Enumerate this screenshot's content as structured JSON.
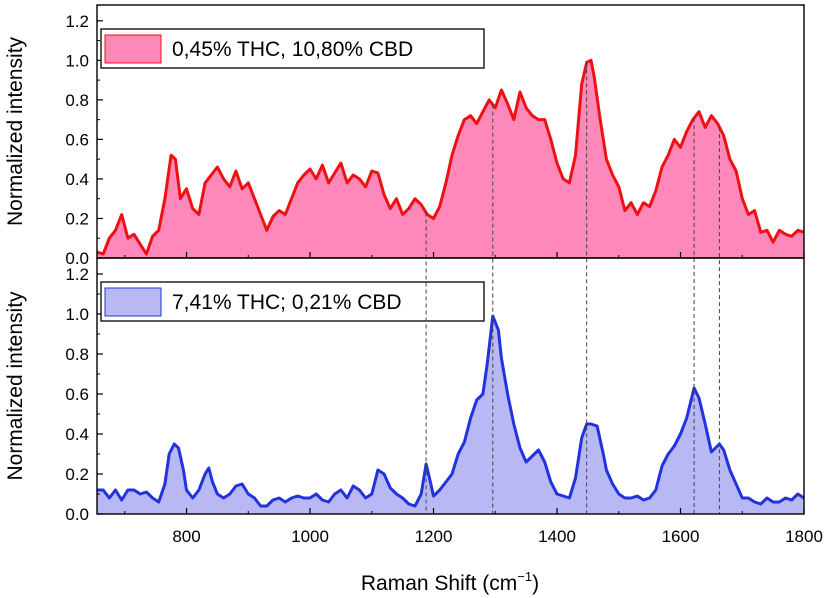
{
  "chart_data": {
    "type": "area",
    "xlabel": "Raman Shift (cm",
    "xlabel_sup": "−1",
    "xlabel_close": ")",
    "xlim": [
      655,
      1800
    ],
    "xticks": [
      "800",
      "1000",
      "1200",
      "1400",
      "1600",
      "1800"
    ],
    "xtick_values": [
      800,
      1000,
      1200,
      1400,
      1600,
      1800
    ],
    "reference_lines_x": [
      1188,
      1296,
      1448,
      1622,
      1663
    ],
    "panels": [
      {
        "ylabel": "Normalized intensity",
        "ylim": [
          0,
          1.28
        ],
        "yticks": [
          "0.0",
          "0.2",
          "0.4",
          "0.6",
          "0.8",
          "1.0",
          "1.2"
        ],
        "ytick_values": [
          0,
          0.2,
          0.4,
          0.6,
          0.8,
          1.0,
          1.2
        ],
        "legend": "top-left",
        "series": {
          "name": "0,45% THC, 10,80% CBD",
          "line_color": "#ee1111",
          "fill_color": "#ff88bb",
          "x": [
            655,
            665,
            675,
            685,
            695,
            705,
            715,
            725,
            735,
            745,
            755,
            765,
            775,
            782,
            790,
            800,
            810,
            820,
            830,
            840,
            850,
            860,
            870,
            880,
            890,
            900,
            910,
            920,
            930,
            940,
            950,
            960,
            970,
            980,
            990,
            1000,
            1010,
            1020,
            1030,
            1040,
            1050,
            1060,
            1070,
            1080,
            1090,
            1100,
            1110,
            1120,
            1130,
            1140,
            1150,
            1160,
            1170,
            1180,
            1190,
            1200,
            1210,
            1220,
            1230,
            1240,
            1250,
            1260,
            1270,
            1280,
            1290,
            1300,
            1310,
            1320,
            1330,
            1340,
            1350,
            1360,
            1370,
            1380,
            1390,
            1400,
            1410,
            1420,
            1430,
            1440,
            1448,
            1455,
            1460,
            1470,
            1480,
            1490,
            1500,
            1510,
            1520,
            1530,
            1540,
            1550,
            1560,
            1570,
            1580,
            1590,
            1600,
            1610,
            1620,
            1630,
            1640,
            1650,
            1660,
            1670,
            1680,
            1690,
            1700,
            1710,
            1720,
            1730,
            1740,
            1750,
            1760,
            1770,
            1780,
            1790,
            1800
          ],
          "y": [
            0.03,
            0.02,
            0.1,
            0.14,
            0.22,
            0.1,
            0.12,
            0.07,
            0.02,
            0.11,
            0.14,
            0.3,
            0.52,
            0.5,
            0.3,
            0.35,
            0.25,
            0.22,
            0.38,
            0.42,
            0.46,
            0.4,
            0.36,
            0.44,
            0.35,
            0.38,
            0.3,
            0.22,
            0.14,
            0.21,
            0.24,
            0.22,
            0.3,
            0.38,
            0.42,
            0.45,
            0.4,
            0.47,
            0.38,
            0.43,
            0.48,
            0.38,
            0.42,
            0.4,
            0.36,
            0.44,
            0.43,
            0.32,
            0.25,
            0.3,
            0.22,
            0.25,
            0.3,
            0.27,
            0.22,
            0.2,
            0.26,
            0.38,
            0.52,
            0.62,
            0.7,
            0.72,
            0.68,
            0.74,
            0.8,
            0.76,
            0.85,
            0.78,
            0.7,
            0.84,
            0.76,
            0.72,
            0.7,
            0.7,
            0.6,
            0.48,
            0.4,
            0.38,
            0.52,
            0.88,
            0.99,
            1.0,
            0.92,
            0.7,
            0.5,
            0.42,
            0.36,
            0.24,
            0.28,
            0.22,
            0.28,
            0.26,
            0.34,
            0.46,
            0.52,
            0.6,
            0.56,
            0.64,
            0.7,
            0.74,
            0.66,
            0.72,
            0.68,
            0.62,
            0.5,
            0.44,
            0.3,
            0.22,
            0.24,
            0.13,
            0.14,
            0.08,
            0.14,
            0.12,
            0.11,
            0.14,
            0.13
          ]
        }
      },
      {
        "ylabel": "Normalized intensity",
        "ylim": [
          0,
          1.28
        ],
        "yticks": [
          "0.0",
          "0.2",
          "0.4",
          "0.6",
          "0.8",
          "1.0",
          "1.2"
        ],
        "ytick_values": [
          0,
          0.2,
          0.4,
          0.6,
          0.8,
          1.0,
          1.2
        ],
        "legend": "top-left",
        "series": {
          "name": "7,41% THC; 0,21% CBD",
          "line_color": "#2233dd",
          "fill_color": "#b8b8f4",
          "x": [
            655,
            665,
            675,
            685,
            695,
            705,
            715,
            725,
            735,
            745,
            755,
            765,
            772,
            780,
            787,
            795,
            800,
            810,
            820,
            830,
            836,
            842,
            850,
            860,
            870,
            880,
            890,
            900,
            910,
            920,
            930,
            940,
            950,
            960,
            970,
            980,
            990,
            1000,
            1010,
            1020,
            1030,
            1040,
            1050,
            1060,
            1070,
            1080,
            1090,
            1100,
            1110,
            1120,
            1130,
            1140,
            1150,
            1160,
            1170,
            1180,
            1188,
            1195,
            1200,
            1210,
            1220,
            1230,
            1240,
            1250,
            1260,
            1270,
            1280,
            1287,
            1296,
            1305,
            1310,
            1320,
            1330,
            1340,
            1350,
            1360,
            1370,
            1380,
            1390,
            1400,
            1410,
            1420,
            1430,
            1440,
            1448,
            1455,
            1465,
            1475,
            1480,
            1490,
            1500,
            1510,
            1520,
            1530,
            1540,
            1550,
            1560,
            1570,
            1580,
            1590,
            1600,
            1610,
            1622,
            1630,
            1640,
            1650,
            1663,
            1670,
            1680,
            1690,
            1700,
            1710,
            1720,
            1730,
            1740,
            1750,
            1760,
            1770,
            1780,
            1790,
            1800
          ],
          "y": [
            0.12,
            0.12,
            0.08,
            0.12,
            0.07,
            0.12,
            0.12,
            0.1,
            0.11,
            0.08,
            0.06,
            0.15,
            0.3,
            0.35,
            0.33,
            0.22,
            0.12,
            0.08,
            0.12,
            0.2,
            0.23,
            0.16,
            0.1,
            0.08,
            0.1,
            0.14,
            0.15,
            0.1,
            0.08,
            0.04,
            0.04,
            0.07,
            0.08,
            0.06,
            0.08,
            0.09,
            0.08,
            0.08,
            0.1,
            0.07,
            0.06,
            0.1,
            0.12,
            0.08,
            0.14,
            0.12,
            0.08,
            0.1,
            0.22,
            0.2,
            0.13,
            0.1,
            0.08,
            0.05,
            0.04,
            0.1,
            0.25,
            0.16,
            0.09,
            0.12,
            0.16,
            0.2,
            0.3,
            0.36,
            0.48,
            0.57,
            0.6,
            0.75,
            0.99,
            0.92,
            0.78,
            0.6,
            0.45,
            0.33,
            0.26,
            0.29,
            0.32,
            0.26,
            0.16,
            0.1,
            0.09,
            0.08,
            0.18,
            0.38,
            0.45,
            0.45,
            0.44,
            0.3,
            0.22,
            0.15,
            0.1,
            0.08,
            0.08,
            0.09,
            0.07,
            0.08,
            0.12,
            0.24,
            0.3,
            0.34,
            0.4,
            0.48,
            0.63,
            0.58,
            0.45,
            0.31,
            0.35,
            0.32,
            0.22,
            0.15,
            0.08,
            0.08,
            0.06,
            0.05,
            0.08,
            0.06,
            0.06,
            0.08,
            0.07,
            0.1,
            0.08
          ]
        }
      }
    ]
  }
}
